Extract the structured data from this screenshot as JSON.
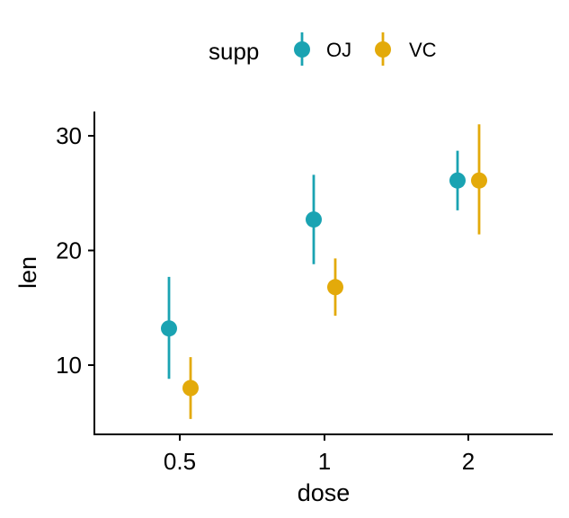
{
  "chart_data": {
    "type": "scatter",
    "subtype": "dot-with-errorbars",
    "xlabel": "dose",
    "ylabel": "len",
    "categories": [
      "0.5",
      "1",
      "2"
    ],
    "ylim": [
      4,
      32
    ],
    "yticks": [
      10,
      20,
      30
    ],
    "grid": false,
    "legend": {
      "title": "supp",
      "position": "top",
      "items": [
        {
          "name": "OJ",
          "color": "#1AA3B2"
        },
        {
          "name": "VC",
          "color": "#E3AA0A"
        }
      ]
    },
    "series": [
      {
        "name": "OJ",
        "color": "#1AA3B2",
        "mean": [
          13.2,
          22.7,
          26.1
        ],
        "lower": [
          8.8,
          18.8,
          23.5
        ],
        "upper": [
          17.7,
          26.6,
          28.7
        ]
      },
      {
        "name": "VC",
        "color": "#E3AA0A",
        "mean": [
          8.0,
          16.8,
          26.1
        ],
        "lower": [
          5.3,
          14.3,
          21.4
        ],
        "upper": [
          10.7,
          19.3,
          31.0
        ]
      }
    ]
  }
}
